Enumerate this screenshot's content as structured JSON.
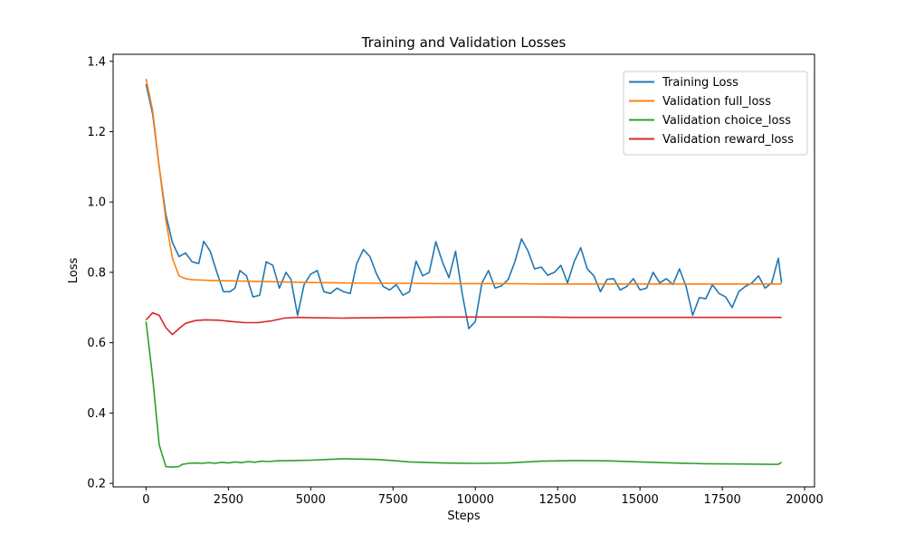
{
  "chart_data": {
    "type": "line",
    "title": "Training and Validation Losses",
    "xlabel": "Steps",
    "ylabel": "Loss",
    "xlim": [
      -1000,
      20300
    ],
    "ylim": [
      0.19,
      1.42
    ],
    "xticks": [
      0,
      2500,
      5000,
      7500,
      10000,
      12500,
      15000,
      17500,
      20000
    ],
    "yticks": [
      0.2,
      0.4,
      0.6,
      0.8,
      1.0,
      1.2,
      1.4
    ],
    "xtick_labels": [
      "0",
      "2500",
      "5000",
      "7500",
      "10000",
      "12500",
      "15000",
      "17500",
      "20000"
    ],
    "ytick_labels": [
      "0.2",
      "0.4",
      "0.6",
      "0.8",
      "1.0",
      "1.2",
      "1.4"
    ],
    "grid": false,
    "legend_position": "upper right",
    "series": [
      {
        "name": "Training Loss",
        "color": "#1f77b4",
        "x": [
          0,
          200,
          400,
          600,
          800,
          1000,
          1200,
          1400,
          1600,
          1750,
          1950,
          2150,
          2350,
          2550,
          2700,
          2850,
          3050,
          3250,
          3450,
          3650,
          3850,
          4050,
          4250,
          4400,
          4600,
          4800,
          5000,
          5200,
          5400,
          5600,
          5800,
          6000,
          6200,
          6400,
          6600,
          6800,
          7000,
          7200,
          7400,
          7600,
          7800,
          8000,
          8200,
          8400,
          8600,
          8800,
          9000,
          9200,
          9400,
          9600,
          9800,
          10000,
          10200,
          10400,
          10600,
          10800,
          11000,
          11200,
          11400,
          11600,
          11800,
          12000,
          12200,
          12400,
          12600,
          12800,
          13000,
          13200,
          13400,
          13600,
          13800,
          14000,
          14200,
          14400,
          14600,
          14800,
          15000,
          15200,
          15400,
          15600,
          15800,
          16000,
          16200,
          16400,
          16600,
          16800,
          17000,
          17200,
          17400,
          17600,
          17800,
          18000,
          18200,
          18400,
          18600,
          18800,
          19000,
          19200,
          19300
        ],
        "y": [
          1.335,
          1.25,
          1.1,
          0.965,
          0.885,
          0.845,
          0.855,
          0.83,
          0.825,
          0.888,
          0.86,
          0.8,
          0.745,
          0.745,
          0.755,
          0.805,
          0.79,
          0.73,
          0.735,
          0.83,
          0.82,
          0.755,
          0.8,
          0.78,
          0.678,
          0.765,
          0.795,
          0.805,
          0.745,
          0.74,
          0.755,
          0.745,
          0.74,
          0.825,
          0.865,
          0.845,
          0.795,
          0.76,
          0.75,
          0.765,
          0.735,
          0.745,
          0.832,
          0.79,
          0.8,
          0.887,
          0.83,
          0.785,
          0.86,
          0.74,
          0.64,
          0.66,
          0.77,
          0.805,
          0.755,
          0.762,
          0.78,
          0.83,
          0.895,
          0.86,
          0.81,
          0.815,
          0.792,
          0.8,
          0.82,
          0.77,
          0.83,
          0.87,
          0.81,
          0.79,
          0.745,
          0.78,
          0.782,
          0.75,
          0.76,
          0.782,
          0.75,
          0.755,
          0.8,
          0.77,
          0.782,
          0.765,
          0.81,
          0.76,
          0.678,
          0.728,
          0.725,
          0.765,
          0.74,
          0.73,
          0.7,
          0.745,
          0.76,
          0.77,
          0.79,
          0.755,
          0.77,
          0.84,
          0.77
        ]
      },
      {
        "name": "Validation full_loss",
        "color": "#ff7f0e",
        "x": [
          0,
          200,
          400,
          600,
          800,
          1000,
          1200,
          1400,
          1700,
          2000,
          2500,
          3000,
          4000,
          5000,
          6000,
          7000,
          8000,
          9000,
          10000,
          11000,
          12000,
          13000,
          14000,
          15000,
          16000,
          17000,
          18000,
          19000,
          19300
        ],
        "y": [
          1.35,
          1.26,
          1.1,
          0.95,
          0.84,
          0.79,
          0.782,
          0.779,
          0.778,
          0.777,
          0.776,
          0.775,
          0.773,
          0.771,
          0.77,
          0.769,
          0.769,
          0.768,
          0.768,
          0.768,
          0.767,
          0.767,
          0.767,
          0.767,
          0.767,
          0.767,
          0.767,
          0.767,
          0.767
        ]
      },
      {
        "name": "Validation choice_loss",
        "color": "#2ca02c",
        "x": [
          0,
          200,
          400,
          600,
          800,
          1000,
          1100,
          1300,
          1500,
          1700,
          1900,
          2100,
          2300,
          2500,
          2700,
          2900,
          3100,
          3300,
          3500,
          3700,
          4000,
          4500,
          5000,
          5500,
          6000,
          6500,
          7000,
          7500,
          8000,
          9000,
          10000,
          11000,
          12000,
          13000,
          14000,
          15000,
          16000,
          17000,
          18000,
          19000,
          19200,
          19300
        ],
        "y": [
          0.66,
          0.5,
          0.31,
          0.248,
          0.246,
          0.248,
          0.254,
          0.257,
          0.258,
          0.257,
          0.259,
          0.257,
          0.26,
          0.258,
          0.261,
          0.259,
          0.262,
          0.26,
          0.263,
          0.262,
          0.264,
          0.265,
          0.266,
          0.268,
          0.27,
          0.269,
          0.268,
          0.265,
          0.261,
          0.258,
          0.257,
          0.258,
          0.263,
          0.265,
          0.264,
          0.261,
          0.258,
          0.256,
          0.255,
          0.254,
          0.254,
          0.26
        ]
      },
      {
        "name": "Validation reward_loss",
        "color": "#d62728",
        "x": [
          0,
          200,
          400,
          600,
          800,
          1000,
          1200,
          1500,
          1800,
          2200,
          2600,
          3000,
          3400,
          3800,
          4200,
          4600,
          5000,
          6000,
          7000,
          8000,
          9000,
          10000,
          11000,
          12000,
          13000,
          14000,
          15000,
          16000,
          17000,
          18000,
          19000,
          19300
        ],
        "y": [
          0.665,
          0.685,
          0.678,
          0.643,
          0.623,
          0.64,
          0.655,
          0.663,
          0.665,
          0.664,
          0.66,
          0.657,
          0.657,
          0.662,
          0.67,
          0.672,
          0.671,
          0.67,
          0.671,
          0.672,
          0.673,
          0.673,
          0.673,
          0.673,
          0.672,
          0.672,
          0.672,
          0.672,
          0.672,
          0.672,
          0.672,
          0.672
        ]
      }
    ]
  }
}
